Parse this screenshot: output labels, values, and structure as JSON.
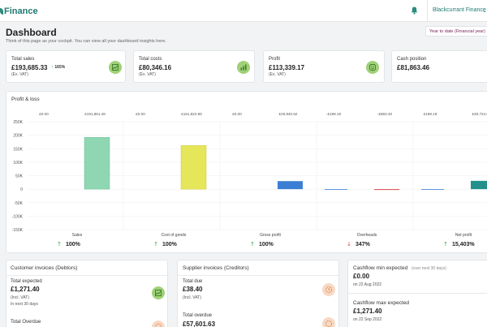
{
  "header": {
    "logo_text": "Finance",
    "company": "Blackcurrant Finance",
    "company_chevron": "⌄"
  },
  "page": {
    "title": "Dashboard",
    "subtitle": "Think of this page as your cockpit. You can view all your dashboard insights here.",
    "period": "Year to date (Financial year)"
  },
  "kpis": [
    {
      "label": "Total sales",
      "value": "£193,685.33",
      "trend": "165%",
      "note": "(Ex. VAT)"
    },
    {
      "label": "Total costs",
      "value": "£80,346.16",
      "trend": "",
      "note": "(Ex. VAT)"
    },
    {
      "label": "Profit",
      "value": "£113,339.17",
      "trend": "",
      "note": "(Ex. VAT)"
    },
    {
      "label": "Cash position",
      "value": "£81,863.46",
      "trend": "",
      "note": ""
    }
  ],
  "pnl": {
    "title": "Profit & loss",
    "top_labels": [
      "£0.00",
      "£191,861.48",
      "£0.00",
      "£161,622.86",
      "£0.00",
      "£29,840.62",
      "-£198.19",
      "-£883.40",
      "£198.19",
      "£30,724.02"
    ],
    "summary": [
      {
        "label": "Sales",
        "pct": "100%",
        "dir": "up"
      },
      {
        "label": "Cost of goods",
        "pct": "100%",
        "dir": "up"
      },
      {
        "label": "Gross profit",
        "pct": "100%",
        "dir": "up"
      },
      {
        "label": "Overheads",
        "pct": "347%",
        "dir": "down"
      },
      {
        "label": "Net profit",
        "pct": "15,403%",
        "dir": "up"
      }
    ]
  },
  "chart_data": {
    "type": "bar",
    "title": "Profit & loss",
    "categories": [
      "Sales",
      "Cost of goods",
      "Gross profit",
      "Overheads",
      "Net profit"
    ],
    "series": [
      {
        "values": [
          0,
          0,
          0,
          -198.19,
          198.19
        ],
        "color": "#3b7fd4"
      },
      {
        "values": [
          191861.48,
          161622.86,
          29840.62,
          -883.4,
          30724.02
        ],
        "colors": [
          "#8fd7b3",
          "#e6e65a",
          "#3b7fd4",
          "#d94848",
          "#23918a"
        ]
      }
    ],
    "ytick_labels": [
      "250K",
      "200K",
      "150K",
      "100K",
      "50K",
      "0",
      "-50K",
      "-100K",
      "-150K"
    ],
    "ylim": [
      -150000,
      250000
    ],
    "grid": true
  },
  "customers": {
    "title": "Customer invoices (Debtors)",
    "total_expected_label": "Total expected",
    "total_expected_value": "£1,271.40",
    "total_expected_note1": "(Incl. VAT)",
    "total_expected_note2": "In next 30 days",
    "total_overdue_label": "Total Overdue"
  },
  "suppliers": {
    "title": "Supplier invoices (Creditors)",
    "total_due_label": "Total due",
    "total_due_value": "£38.40",
    "total_due_note": "(Incl. VAT)",
    "total_overdue_label": "Total overdue",
    "total_overdue_value": "£57,601.63"
  },
  "cashflow": {
    "min_label": "Cashflow min expected",
    "min_hint": "(over next 30 days)",
    "min_value": "£0.00",
    "min_date": "on 22 Aug 2022",
    "max_label": "Cashflow max expected",
    "max_value": "£1,271.40",
    "max_date": "on 22 Sep 2022"
  }
}
